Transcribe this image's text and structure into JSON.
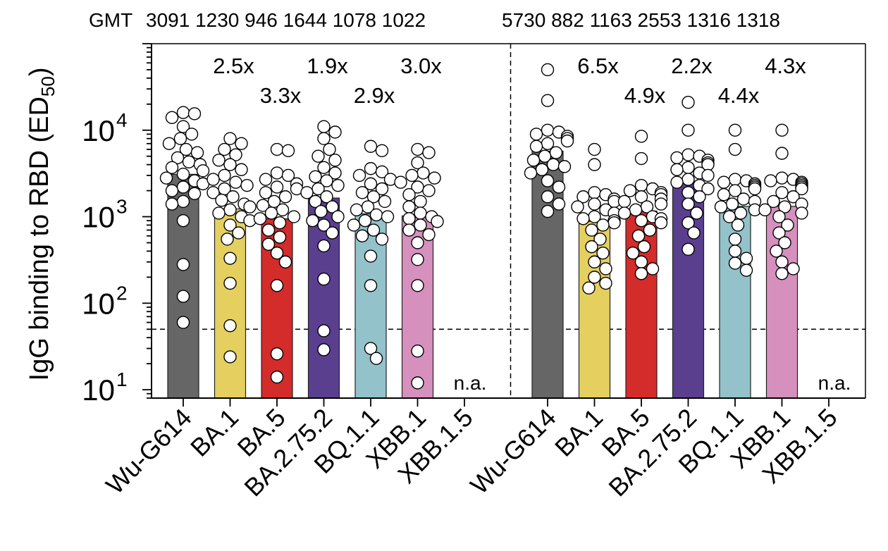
{
  "chart_data": {
    "type": "bar",
    "gmt_label": "GMT",
    "ylabel": "IgG binding to RBD (ED",
    "ylabel_sub": "50",
    "ylabel_close": ")",
    "yscale": "log",
    "ylim": [
      8,
      100000
    ],
    "yticks": [
      {
        "value": 10,
        "base": "10",
        "exp": "1"
      },
      {
        "value": 100,
        "base": "10",
        "exp": "2"
      },
      {
        "value": 1000,
        "base": "10",
        "exp": "3"
      },
      {
        "value": 10000,
        "base": "10",
        "exp": "4"
      }
    ],
    "detection_limit": 50,
    "categories": [
      "Wu-G614",
      "BA.1",
      "BA.5",
      "BA.2.75.2",
      "BQ.1.1",
      "XBB.1",
      "XBB.1.5"
    ],
    "colors": [
      "#666666",
      "#e5d05f",
      "#d42b2b",
      "#5a3f8f",
      "#93c2cb",
      "#d690bd",
      "#ffffff"
    ],
    "panels": [
      {
        "gmt": [
          "3091",
          "1230",
          "946",
          "1644",
          "1078",
          "1022"
        ],
        "values": [
          3091,
          1230,
          946,
          1644,
          1078,
          1022,
          null
        ],
        "fold_changes": [
          "",
          "2.5x",
          "3.3x",
          "1.9x",
          "2.9x",
          "3.0x",
          ""
        ],
        "na_label": "n.a.",
        "points": [
          [
            16000,
            15500,
            14000,
            11000,
            9000,
            8000,
            7000,
            6000,
            5500,
            4800,
            4300,
            4000,
            3700,
            3400,
            3100,
            2800,
            2600,
            2400,
            2200,
            2000,
            1850,
            1500,
            1400,
            900,
            280,
            120,
            60
          ],
          [
            8000,
            7000,
            6000,
            5200,
            4500,
            4000,
            3500,
            3000,
            2700,
            2500,
            2300,
            2100,
            1900,
            1700,
            1550,
            1400,
            1300,
            1200,
            1100,
            1000,
            900,
            800,
            650,
            550,
            330,
            170,
            55,
            24
          ],
          [
            6000,
            5800,
            3200,
            3000,
            2700,
            2400,
            2200,
            2100,
            1900,
            1700,
            1500,
            1350,
            1200,
            1100,
            1000,
            950,
            850,
            700,
            580,
            480,
            380,
            300,
            160,
            26,
            14
          ],
          [
            11000,
            9500,
            8000,
            6000,
            5000,
            4500,
            3700,
            3200,
            2900,
            2600,
            2300,
            2100,
            1900,
            1700,
            1500,
            1300,
            1150,
            1000,
            900,
            800,
            650,
            460,
            190,
            48,
            29
          ],
          [
            6500,
            5800,
            3600,
            3300,
            3000,
            2700,
            2400,
            2100,
            1900,
            1700,
            1500,
            1300,
            1200,
            1050,
            1000,
            900,
            800,
            700,
            600,
            550,
            350,
            160,
            30,
            23
          ],
          [
            6000,
            5500,
            4200,
            3200,
            3000,
            2800,
            2500,
            2200,
            2000,
            1800,
            1500,
            1300,
            1100,
            1000,
            950,
            880,
            800,
            700,
            620,
            500,
            320,
            160,
            28,
            12
          ]
        ]
      },
      {
        "gmt": [
          "5730",
          "882",
          "1163",
          "2553",
          "1316",
          "1318"
        ],
        "values": [
          5730,
          882,
          1163,
          2553,
          1316,
          1318,
          null
        ],
        "fold_changes": [
          "",
          "6.5x",
          "4.9x",
          "2.2x",
          "4.4x",
          "4.3x",
          ""
        ],
        "na_label": "n.a.",
        "points": [
          [
            50000,
            22000,
            10000,
            9500,
            9000,
            8500,
            8000,
            7500,
            7000,
            6500,
            5500,
            5000,
            4500,
            4000,
            3800,
            3500,
            3200,
            2600,
            2200,
            1700,
            1400,
            1150
          ],
          [
            6000,
            4000,
            1900,
            1800,
            1700,
            1600,
            1500,
            1400,
            1300,
            1200,
            1100,
            1000,
            950,
            900,
            850,
            800,
            700,
            550,
            450,
            380,
            300,
            250,
            200,
            170,
            150
          ],
          [
            8500,
            4700,
            2300,
            2100,
            2000,
            1900,
            1800,
            1700,
            1600,
            1500,
            1400,
            1300,
            1200,
            1100,
            1000,
            950,
            900,
            850,
            700,
            600,
            450,
            380,
            300,
            250,
            220
          ],
          [
            21000,
            10000,
            5200,
            5000,
            4800,
            4500,
            4200,
            4000,
            3700,
            3500,
            3200,
            3000,
            2700,
            2500,
            2300,
            2100,
            1900,
            1700,
            1400,
            1100,
            850,
            650,
            420
          ],
          [
            10000,
            6000,
            2700,
            2600,
            2500,
            2400,
            2300,
            2200,
            2100,
            2000,
            1800,
            1600,
            1500,
            1400,
            1300,
            1200,
            1100,
            1000,
            800,
            550,
            400,
            330,
            290,
            240
          ],
          [
            10000,
            5400,
            2800,
            2700,
            2600,
            2500,
            2400,
            2300,
            2200,
            2100,
            1900,
            1700,
            1500,
            1400,
            1300,
            1200,
            1100,
            1000,
            800,
            650,
            500,
            400,
            300,
            250,
            220
          ]
        ]
      }
    ]
  }
}
